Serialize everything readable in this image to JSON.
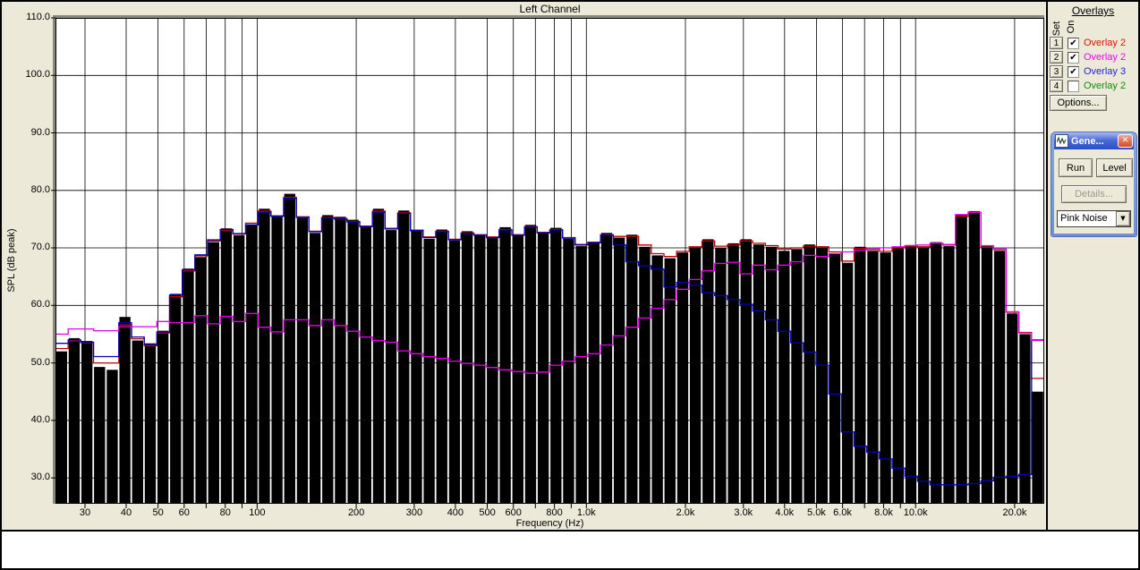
{
  "chart_data": {
    "type": "bar",
    "title": "Left Channel",
    "xlabel": "Frequency (Hz)",
    "ylabel": "SPL (dB peak)",
    "x_scale": "log",
    "freq_range_hz": [
      24.4,
      24600
    ],
    "ylim": [
      25.5,
      110
    ],
    "grid": true,
    "grid_color": "#000000",
    "plot_bg": "#ffffff",
    "y_ticks": [
      {
        "value": 110,
        "label": "110.0"
      },
      {
        "value": 100,
        "label": "100.0"
      },
      {
        "value": 90,
        "label": "90.0"
      },
      {
        "value": 80,
        "label": "80.0"
      },
      {
        "value": 70,
        "label": "70.0"
      },
      {
        "value": 60,
        "label": "60.0"
      },
      {
        "value": 50,
        "label": "50.0"
      },
      {
        "value": 40,
        "label": "40.0"
      },
      {
        "value": 30,
        "label": "30.0"
      }
    ],
    "y_gridlines": [
      100,
      90,
      80,
      70,
      60,
      50,
      40,
      30
    ],
    "x_gridline_freqs": [
      30,
      40,
      50,
      60,
      70,
      80,
      90,
      100,
      200,
      300,
      400,
      500,
      600,
      700,
      800,
      900,
      1000,
      2000,
      3000,
      4000,
      5000,
      6000,
      7000,
      8000,
      9000,
      10000,
      20000
    ],
    "x_tick_labels": [
      {
        "f": 30,
        "label": "30"
      },
      {
        "f": 40,
        "label": "40"
      },
      {
        "f": 50,
        "label": "50"
      },
      {
        "f": 60,
        "label": "60"
      },
      {
        "f": 80,
        "label": "80"
      },
      {
        "f": 100,
        "label": "100"
      },
      {
        "f": 200,
        "label": "200"
      },
      {
        "f": 300,
        "label": "300"
      },
      {
        "f": 400,
        "label": "400"
      },
      {
        "f": 500,
        "label": "500"
      },
      {
        "f": 600,
        "label": "600"
      },
      {
        "f": 800,
        "label": "800"
      },
      {
        "f": 1000,
        "label": "1.0k"
      },
      {
        "f": 2000,
        "label": "2.0k"
      },
      {
        "f": 3000,
        "label": "3.0k"
      },
      {
        "f": 4000,
        "label": "4.0k"
      },
      {
        "f": 5000,
        "label": "5.0k"
      },
      {
        "f": 6000,
        "label": "6.0k"
      },
      {
        "f": 8000,
        "label": "8.0k"
      },
      {
        "f": 10000,
        "label": "10.0k"
      },
      {
        "f": 20000,
        "label": "20.0k"
      }
    ],
    "bars": {
      "name": "Left Channel spectrum",
      "color": "#000000",
      "values_db": [
        52.0,
        54.3,
        53.8,
        49.3,
        48.8,
        58.0,
        53.9,
        53.4,
        55.6,
        62.0,
        66.4,
        68.4,
        71.0,
        73.4,
        72.2,
        74.1,
        76.8,
        75.4,
        79.4,
        75.2,
        72.6,
        75.7,
        75.4,
        74.9,
        73.6,
        76.8,
        73.1,
        76.5,
        72.9,
        71.6,
        73.2,
        71.3,
        72.9,
        72.1,
        71.7,
        73.6,
        72.1,
        74.0,
        72.5,
        73.5,
        71.6,
        70.3,
        70.8,
        72.6,
        71.8,
        72.3,
        70.2,
        68.7,
        68.2,
        69.2,
        70.0,
        71.5,
        70.0,
        70.8,
        71.5,
        70.6,
        70.2,
        69.5,
        69.8,
        70.6,
        70.0,
        69.0,
        67.4,
        70.2,
        69.5,
        69.2,
        70.2,
        70.5,
        70.0,
        71.0,
        70.3,
        75.7,
        76.4,
        70.3,
        69.5,
        58.6,
        55.0,
        45.0
      ]
    },
    "overlays": [
      {
        "name": "Overlay 2",
        "color": "#b80000",
        "values_db": [
          52.5,
          53.8,
          53.5,
          50.0,
          50.0,
          56.6,
          54.2,
          53.0,
          55.2,
          61.5,
          66.0,
          68.6,
          71.2,
          73.0,
          72.4,
          74.3,
          76.4,
          75.6,
          78.8,
          75.4,
          72.9,
          75.3,
          75.1,
          74.6,
          73.8,
          76.4,
          73.4,
          76.1,
          73.1,
          71.9,
          72.9,
          71.5,
          72.6,
          72.3,
          71.9,
          73.2,
          72.3,
          73.7,
          72.7,
          73.2,
          71.8,
          70.6,
          71.0,
          72.3,
          72.0,
          72.0,
          70.5,
          69.0,
          68.5,
          69.4,
          70.2,
          71.2,
          70.3,
          70.5,
          71.2,
          70.8,
          70.4,
          69.8,
          70.0,
          70.3,
          70.2,
          69.3,
          67.7,
          69.9,
          69.7,
          69.4,
          70.0,
          70.3,
          70.2,
          70.8,
          70.5,
          75.5,
          76.2,
          70.1,
          69.7,
          58.8,
          55.3,
          47.3
        ]
      },
      {
        "name": "Overlay 2",
        "color": "#e400e4",
        "values_db": [
          55.0,
          55.9,
          55.9,
          55.6,
          55.6,
          56.3,
          56.3,
          56.3,
          57.2,
          57.0,
          57.0,
          58.2,
          56.8,
          58.1,
          57.2,
          58.6,
          56.2,
          55.4,
          57.5,
          57.5,
          56.5,
          57.5,
          56.5,
          55.5,
          54.5,
          53.9,
          53.6,
          52.1,
          51.6,
          51.1,
          50.8,
          50.3,
          49.9,
          49.6,
          49.2,
          48.8,
          48.5,
          48.2,
          48.4,
          49.6,
          50.3,
          51.1,
          51.6,
          53.1,
          54.7,
          56.2,
          57.8,
          59.5,
          61.0,
          62.8,
          64.5,
          66.0,
          67.3,
          67.5,
          65.5,
          67.0,
          66.2,
          67.0,
          67.6,
          68.7,
          68.5,
          69.0,
          69.3,
          69.6,
          69.8,
          70.0,
          70.2,
          70.4,
          70.5,
          70.8,
          70.6,
          75.8,
          76.2,
          70.4,
          69.8,
          58.9,
          55.2,
          53.9
        ]
      },
      {
        "name": "Overlay 3",
        "color": "#0000b4",
        "values_db": [
          53.4,
          54.0,
          53.6,
          51.1,
          51.1,
          57.0,
          54.5,
          53.2,
          55.4,
          61.8,
          66.2,
          68.8,
          71.4,
          73.2,
          72.5,
          74.0,
          76.2,
          75.5,
          78.6,
          75.3,
          72.8,
          75.2,
          75.0,
          74.5,
          73.7,
          76.2,
          73.3,
          76.0,
          73.0,
          71.8,
          72.8,
          71.4,
          72.5,
          72.2,
          71.8,
          73.1,
          72.2,
          73.6,
          72.6,
          73.1,
          71.7,
          70.5,
          70.9,
          72.2,
          70.5,
          67.6,
          66.9,
          66.3,
          63.2,
          64.0,
          63.5,
          62.2,
          61.7,
          61.0,
          60.2,
          59.0,
          57.5,
          55.5,
          53.5,
          51.9,
          49.6,
          44.6,
          38.0,
          35.5,
          34.5,
          33.3,
          31.7,
          30.3,
          29.4,
          28.8,
          28.8,
          28.8,
          29.0,
          29.5,
          30.1,
          30.3,
          30.6,
          54.0
        ]
      }
    ],
    "overlay_draw_order": [
      0,
      2,
      1
    ]
  },
  "overlays_panel": {
    "header": "Overlays",
    "col_set": "Set",
    "col_on": "On",
    "rows": [
      {
        "set": "1",
        "checked": true,
        "label": "Overlay 2",
        "color": "#dd1100"
      },
      {
        "set": "2",
        "checked": true,
        "label": "Overlay 2",
        "color": "#ee00ee"
      },
      {
        "set": "3",
        "checked": true,
        "label": "Overlay 3",
        "color": "#2222cc"
      },
      {
        "set": "4",
        "checked": false,
        "label": "Overlay 2",
        "color": "#0f8a0f"
      }
    ],
    "options_label": "Options..."
  },
  "generator_window": {
    "title": "Gene...",
    "run_label": "Run",
    "level_label": "Level",
    "details_label": "Details...",
    "signal_selected": "Pink Noise"
  },
  "icons": {
    "close": "✕",
    "dropdown_arrow": "▼",
    "checkbox_check": "✔"
  },
  "colors": {
    "panel_bg": "#ece9d8",
    "plot_bg": "#ffffff",
    "bar": "#000000",
    "frame": "#000000",
    "titlebar_gradient_top": "#a8bcf0",
    "titlebar_gradient_bottom": "#2c4ec4",
    "close_button": "#d04a28",
    "disabled_text": "#9e9a8e"
  }
}
